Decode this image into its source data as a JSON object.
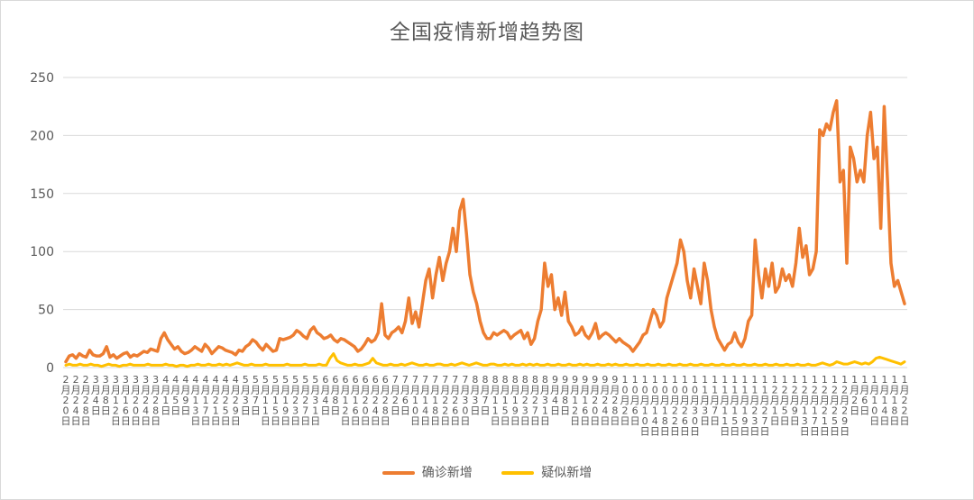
{
  "colors": {
    "confirmed": "#ED7D31",
    "suspected": "#FFC000",
    "grid": "#d9d9d9",
    "text": "#595959"
  },
  "chart_data": {
    "type": "line",
    "title": "全国疫情新增趋势图",
    "xlabel": "",
    "ylabel": "",
    "ylim": [
      0,
      250
    ],
    "yticks": [
      0,
      50,
      100,
      150,
      200,
      250
    ],
    "grid": true,
    "legend_position": "bottom",
    "x_start": "2月20日",
    "x_end": "1月22日",
    "x_tick_labels": [
      "2月20日",
      "2月24日",
      "2月28日",
      "3月4日",
      "3月8日",
      "3月12日",
      "3月16日",
      "3月20日",
      "3月24日",
      "3月28日",
      "4月1日",
      "4月5日",
      "4月9日",
      "4月13日",
      "4月17日",
      "4月21日",
      "4月25日",
      "4月29日",
      "5月3日",
      "5月7日",
      "5月11日",
      "5月15日",
      "5月19日",
      "5月23日",
      "5月27日",
      "5月31日",
      "6月4日",
      "6月8日",
      "6月12日",
      "6月16日",
      "6月20日",
      "6月24日",
      "6月28日",
      "7月2日",
      "7月6日",
      "7月10日",
      "7月14日",
      "7月18日",
      "7月22日",
      "7月26日",
      "7月30日",
      "8月3日",
      "8月7日",
      "8月11日",
      "8月15日",
      "8月19日",
      "8月23日",
      "8月27日",
      "8月31日",
      "9月4日",
      "9月8日",
      "9月12日",
      "9月16日",
      "9月20日",
      "9月24日",
      "9月28日",
      "10月2日",
      "10月6日",
      "10月10日",
      "10月14日",
      "10月18日",
      "10月22日",
      "10月26日",
      "10月30日",
      "11月3日",
      "11月7日",
      "11月11日",
      "11月15日",
      "11月19日",
      "11月23日",
      "11月27日",
      "12月1日",
      "12月5日",
      "12月9日",
      "12月13日",
      "12月17日",
      "12月21日",
      "12月25日",
      "12月29日",
      "1月2日",
      "1月6日",
      "1月10日",
      "1月14日",
      "1月18日",
      "1月22日"
    ],
    "series": [
      {
        "name": "确诊新增",
        "color": "#ED7D31",
        "values": [
          5,
          10,
          11,
          8,
          12,
          10,
          9,
          15,
          11,
          10,
          10,
          12,
          18,
          9,
          11,
          8,
          10,
          12,
          13,
          9,
          11,
          10,
          12,
          14,
          13,
          16,
          15,
          14,
          25,
          30,
          24,
          20,
          16,
          18,
          14,
          12,
          13,
          15,
          18,
          16,
          14,
          20,
          17,
          12,
          15,
          18,
          17,
          15,
          14,
          13,
          11,
          15,
          14,
          18,
          20,
          24,
          22,
          18,
          15,
          20,
          17,
          14,
          15,
          25,
          24,
          25,
          26,
          28,
          32,
          30,
          27,
          25,
          32,
          35,
          30,
          28,
          25,
          26,
          28,
          24,
          22,
          25,
          24,
          22,
          20,
          18,
          14,
          16,
          20,
          25,
          22,
          24,
          30,
          55,
          28,
          25,
          30,
          32,
          35,
          30,
          40,
          60,
          38,
          48,
          35,
          55,
          75,
          85,
          60,
          80,
          95,
          75,
          90,
          100,
          120,
          100,
          135,
          145,
          115,
          80,
          65,
          55,
          40,
          30,
          25,
          25,
          30,
          28,
          30,
          32,
          30,
          25,
          28,
          30,
          32,
          25,
          30,
          20,
          25,
          40,
          50,
          90,
          70,
          80,
          50,
          60,
          45,
          65,
          40,
          35,
          28,
          30,
          35,
          28,
          25,
          30,
          38,
          25,
          28,
          30,
          28,
          25,
          22,
          25,
          22,
          20,
          18,
          14,
          18,
          22,
          28,
          30,
          40,
          50,
          45,
          35,
          40,
          60,
          70,
          80,
          90,
          110,
          100,
          75,
          60,
          85,
          70,
          55,
          90,
          75,
          50,
          35,
          25,
          20,
          15,
          20,
          22,
          30,
          22,
          18,
          25,
          40,
          45,
          110,
          80,
          60,
          85,
          70,
          90,
          65,
          70,
          85,
          75,
          80,
          70,
          90,
          120,
          95,
          105,
          80,
          85,
          100,
          205,
          200,
          210,
          205,
          220,
          230,
          160,
          170,
          90,
          190,
          180,
          160,
          170,
          160,
          200,
          220,
          180,
          190,
          120,
          225,
          160,
          90,
          70,
          75,
          65,
          55
        ]
      },
      {
        "name": "疑似新增",
        "color": "#FFC000",
        "values": [
          2,
          3,
          2,
          2,
          3,
          2,
          2,
          3,
          2,
          2,
          1,
          2,
          3,
          2,
          2,
          1,
          2,
          2,
          3,
          2,
          2,
          2,
          2,
          3,
          2,
          2,
          2,
          2,
          3,
          2,
          2,
          1,
          2,
          2,
          1,
          2,
          2,
          3,
          2,
          2,
          3,
          2,
          2,
          3,
          2,
          3,
          2,
          3,
          4,
          3,
          2,
          2,
          3,
          2,
          2,
          2,
          3,
          2,
          2,
          2,
          2,
          2,
          3,
          2,
          2,
          2,
          2,
          3,
          2,
          2,
          2,
          3,
          2,
          2,
          8,
          12,
          6,
          4,
          3,
          2,
          2,
          3,
          2,
          2,
          3,
          4,
          8,
          4,
          3,
          2,
          2,
          3,
          2,
          2,
          3,
          2,
          3,
          4,
          3,
          2,
          2,
          3,
          2,
          2,
          3,
          3,
          2,
          2,
          3,
          2,
          3,
          4,
          3,
          2,
          3,
          4,
          3,
          2,
          2,
          3,
          3,
          2,
          2,
          3,
          2,
          3,
          2,
          2,
          3,
          2,
          3,
          2,
          3,
          2,
          2,
          3,
          2,
          2,
          3,
          2,
          2,
          3,
          2,
          2,
          3,
          2,
          3,
          2,
          2,
          3,
          2,
          2,
          3,
          2,
          3,
          2,
          2,
          3,
          2,
          2,
          3,
          2,
          2,
          3,
          2,
          2,
          3,
          2,
          2,
          3,
          2,
          2,
          3,
          2,
          2,
          3,
          2,
          2,
          3,
          2,
          2,
          3,
          2,
          2,
          3,
          2,
          2,
          3,
          2,
          2,
          3,
          2,
          2,
          3,
          2,
          2,
          3,
          2,
          2,
          3,
          2,
          2,
          3,
          2,
          2,
          3,
          2,
          2,
          3,
          2,
          2,
          3,
          4,
          3,
          2,
          3,
          5,
          4,
          3,
          3,
          4,
          5,
          4,
          3,
          4,
          3,
          5,
          8,
          9,
          8,
          7,
          6,
          5,
          4,
          3,
          5
        ]
      }
    ]
  }
}
